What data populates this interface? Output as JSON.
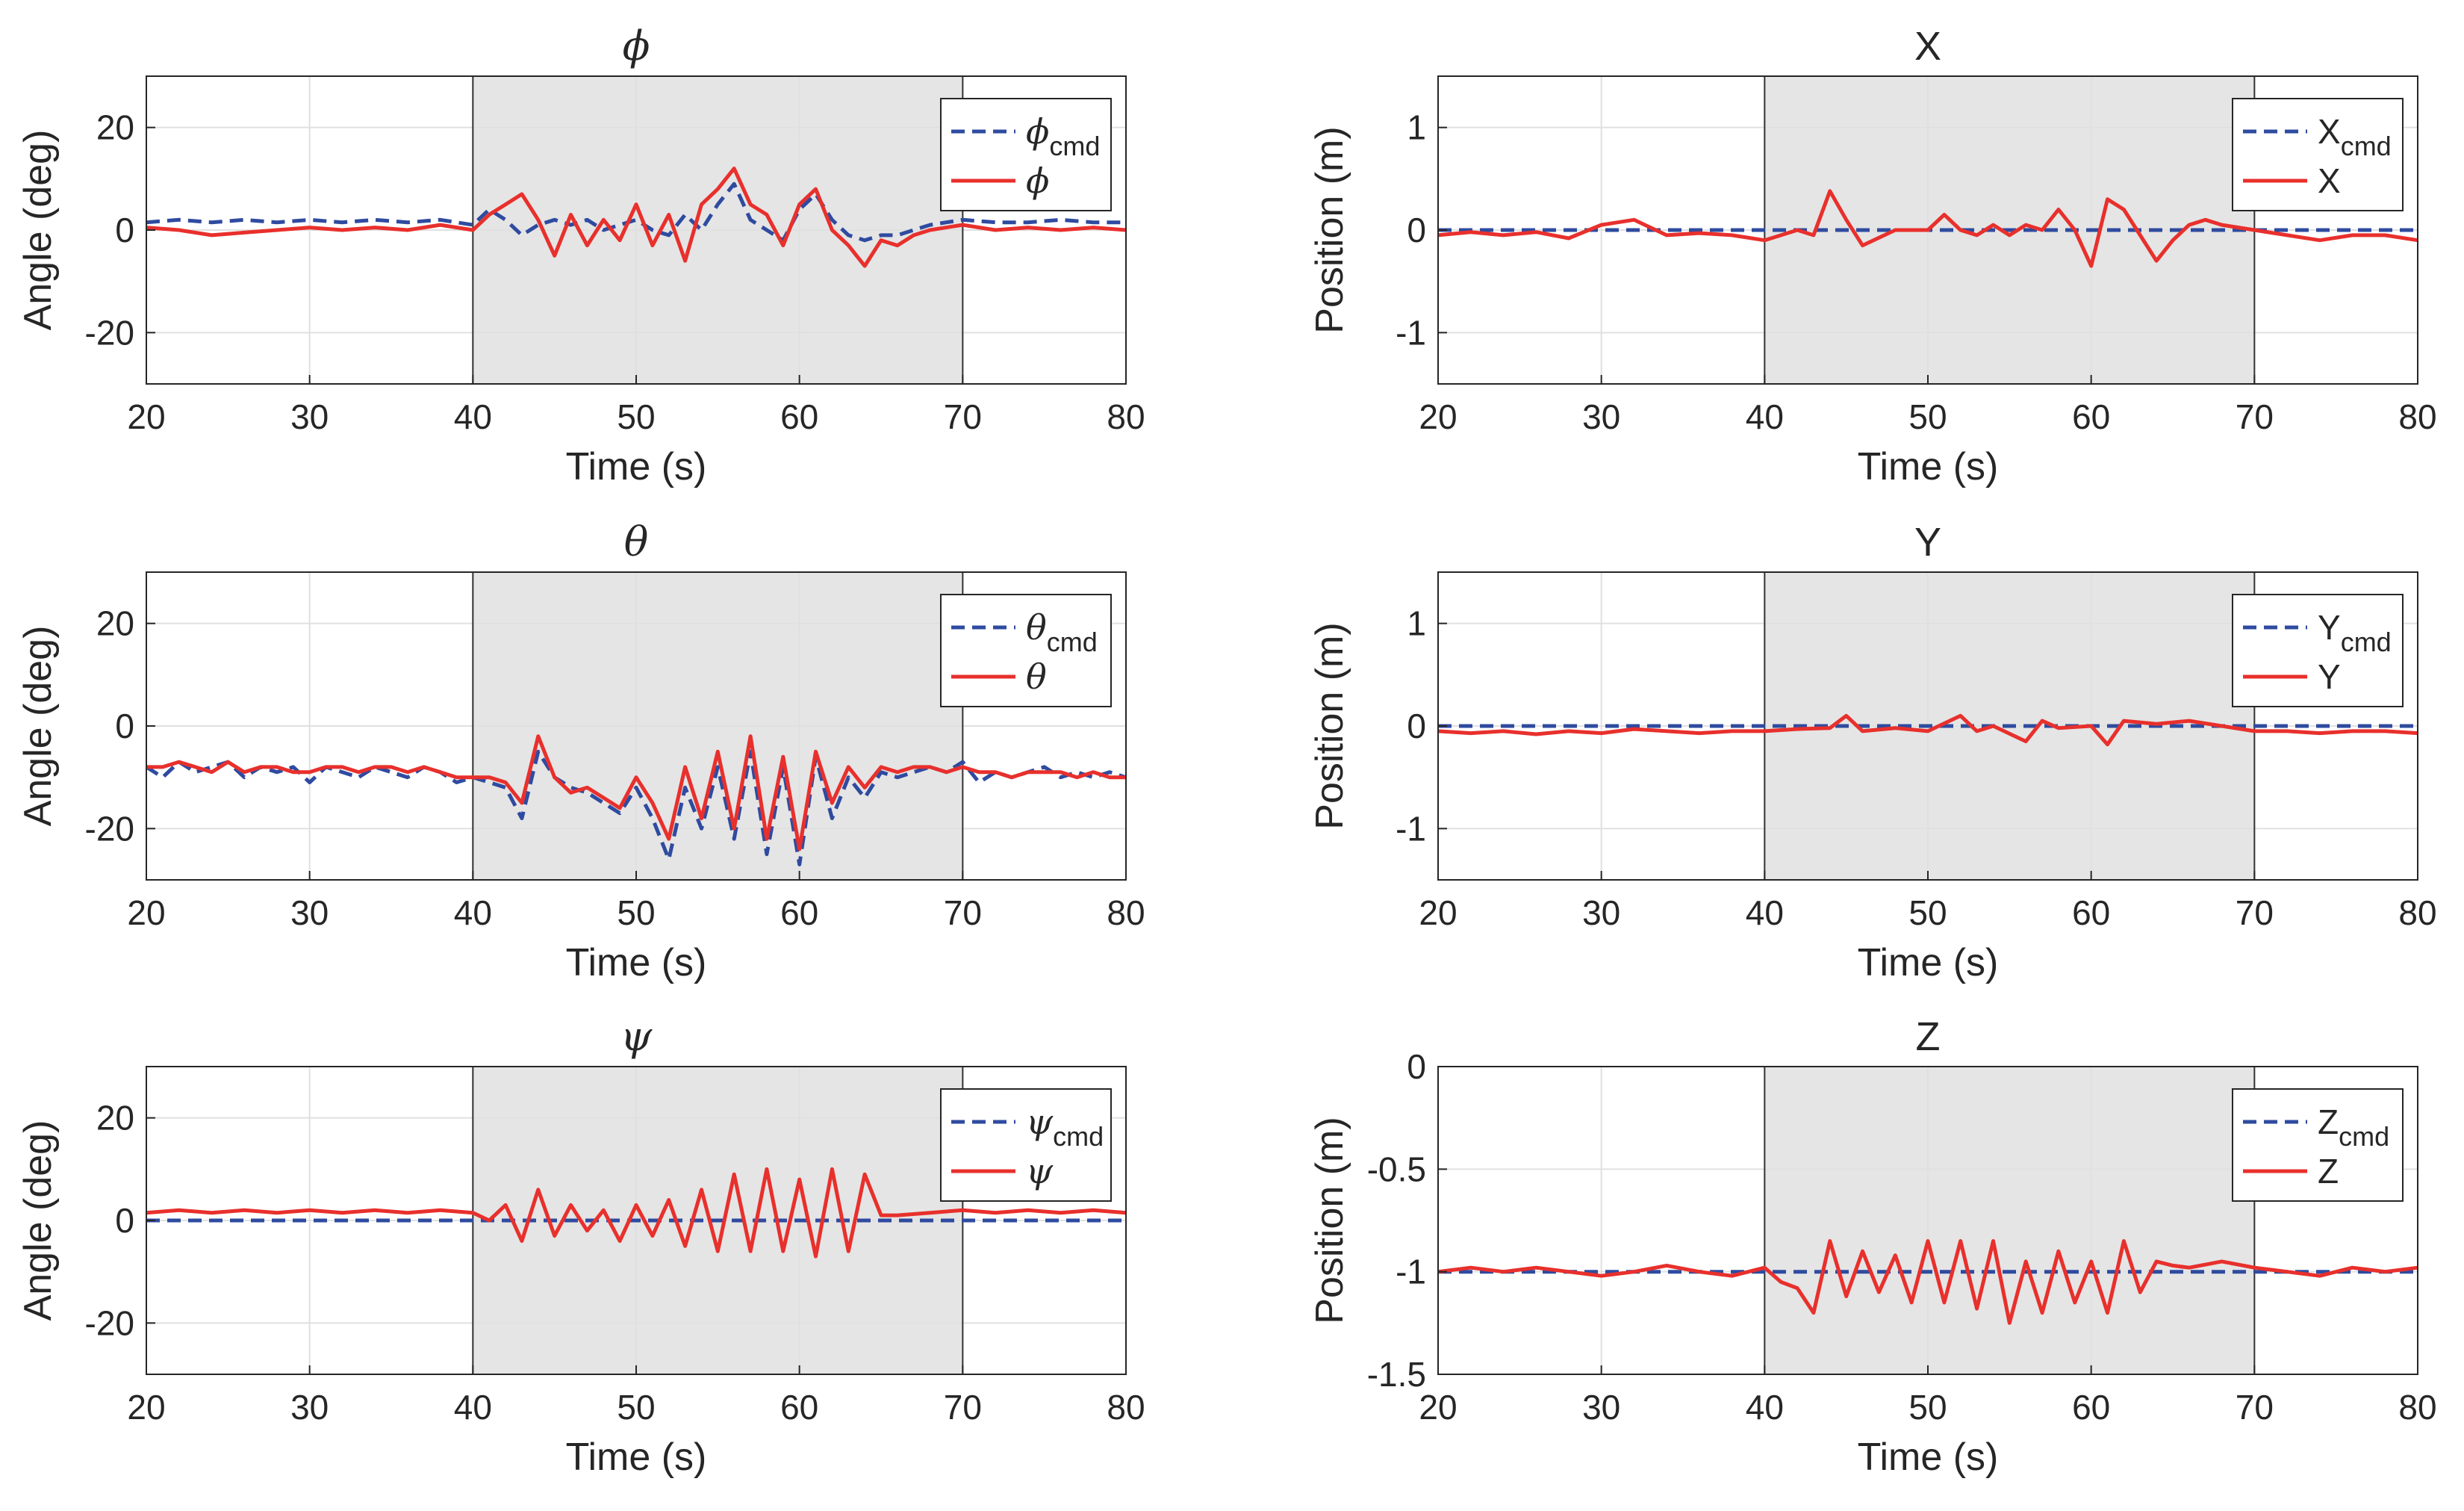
{
  "figure": {
    "background": "#ffffff"
  },
  "style": {
    "cmd_color": "#2F4BA0",
    "act_color": "#E8302C",
    "shade_color": "#E5E5E5",
    "grid_color": "#E0E0E0",
    "axis_color": "#262626"
  },
  "chart_data": [
    {
      "id": "phi",
      "type": "line",
      "title": "ϕ",
      "title_style": "greek",
      "xlabel": "Time (s)",
      "ylabel": "Angle (deg)",
      "xlim": [
        20,
        80
      ],
      "ylim": [
        -30,
        30
      ],
      "xticks": [
        20,
        30,
        40,
        50,
        60,
        70,
        80
      ],
      "yticks": [
        -20,
        0,
        20
      ],
      "shaded_interval": [
        40,
        70
      ],
      "legend_loc": "top-right",
      "series": [
        {
          "name": "cmd",
          "legend_base": "ϕ",
          "legend_sub": "cmd",
          "style": "dashed",
          "x": [
            20,
            22,
            24,
            26,
            28,
            30,
            32,
            34,
            36,
            38,
            40,
            41,
            42,
            43,
            44,
            45,
            46,
            47,
            48,
            49,
            50,
            51,
            52,
            53,
            54,
            55,
            56,
            57,
            58,
            59,
            60,
            61,
            62,
            63,
            64,
            65,
            66,
            67,
            68,
            70,
            72,
            74,
            76,
            78,
            80
          ],
          "values": [
            1.5,
            2,
            1.5,
            2,
            1.5,
            2,
            1.5,
            2,
            1.5,
            2,
            1,
            4,
            2,
            -1,
            1,
            2,
            1,
            2,
            0,
            1,
            2,
            0,
            -1,
            3,
            0,
            5,
            9,
            2,
            0,
            -2,
            4,
            7,
            2,
            -1,
            -2,
            -1,
            -1,
            0,
            1,
            2,
            1.5,
            1.5,
            2,
            1.5,
            1.5
          ]
        },
        {
          "name": "actual",
          "legend_base": "ϕ",
          "legend_sub": "",
          "style": "solid",
          "x": [
            20,
            22,
            24,
            26,
            28,
            30,
            32,
            34,
            36,
            38,
            40,
            41,
            42,
            43,
            44,
            45,
            46,
            47,
            48,
            49,
            50,
            51,
            52,
            53,
            54,
            55,
            56,
            57,
            58,
            59,
            60,
            61,
            62,
            63,
            64,
            65,
            66,
            67,
            68,
            70,
            72,
            74,
            76,
            78,
            80
          ],
          "values": [
            0.5,
            0,
            -1,
            -0.5,
            0,
            0.5,
            0,
            0.5,
            0,
            1,
            0,
            3,
            5,
            7,
            2,
            -5,
            3,
            -3,
            2,
            -2,
            5,
            -3,
            3,
            -6,
            5,
            8,
            12,
            5,
            3,
            -3,
            5,
            8,
            0,
            -3,
            -7,
            -2,
            -3,
            -1,
            0,
            1,
            0,
            0.5,
            0,
            0.5,
            0
          ]
        }
      ]
    },
    {
      "id": "theta",
      "type": "line",
      "title": "θ",
      "title_style": "greek",
      "xlabel": "Time (s)",
      "ylabel": "Angle (deg)",
      "xlim": [
        20,
        80
      ],
      "ylim": [
        -30,
        30
      ],
      "xticks": [
        20,
        30,
        40,
        50,
        60,
        70,
        80
      ],
      "yticks": [
        -20,
        0,
        20
      ],
      "shaded_interval": [
        40,
        70
      ],
      "legend_loc": "top-right",
      "series": [
        {
          "name": "cmd",
          "legend_base": "θ",
          "legend_sub": "cmd",
          "style": "dashed",
          "x": [
            20,
            21,
            22,
            23,
            24,
            25,
            26,
            27,
            28,
            29,
            30,
            31,
            32,
            33,
            34,
            35,
            36,
            37,
            38,
            39,
            40,
            41,
            42,
            43,
            44,
            45,
            46,
            47,
            48,
            49,
            50,
            51,
            52,
            53,
            54,
            55,
            56,
            57,
            58,
            59,
            60,
            61,
            62,
            63,
            64,
            65,
            66,
            67,
            68,
            69,
            70,
            71,
            72,
            73,
            74,
            75,
            76,
            77,
            78,
            79,
            80
          ],
          "values": [
            -8,
            -10,
            -7,
            -9,
            -8,
            -7,
            -10,
            -8,
            -9,
            -8,
            -11,
            -8,
            -9,
            -10,
            -8,
            -9,
            -10,
            -8,
            -9,
            -11,
            -10,
            -11,
            -12,
            -18,
            -5,
            -10,
            -12,
            -13,
            -15,
            -17,
            -12,
            -18,
            -26,
            -12,
            -20,
            -8,
            -22,
            -5,
            -25,
            -8,
            -27,
            -6,
            -18,
            -10,
            -14,
            -9,
            -10,
            -9,
            -8,
            -9,
            -7,
            -11,
            -9,
            -10,
            -9,
            -8,
            -10,
            -9,
            -10,
            -9,
            -10
          ]
        },
        {
          "name": "actual",
          "legend_base": "θ",
          "legend_sub": "",
          "style": "solid",
          "x": [
            20,
            21,
            22,
            23,
            24,
            25,
            26,
            27,
            28,
            29,
            30,
            31,
            32,
            33,
            34,
            35,
            36,
            37,
            38,
            39,
            40,
            41,
            42,
            43,
            44,
            45,
            46,
            47,
            48,
            49,
            50,
            51,
            52,
            53,
            54,
            55,
            56,
            57,
            58,
            59,
            60,
            61,
            62,
            63,
            64,
            65,
            66,
            67,
            68,
            69,
            70,
            71,
            72,
            73,
            74,
            75,
            76,
            77,
            78,
            79,
            80
          ],
          "values": [
            -8,
            -8,
            -7,
            -8,
            -9,
            -7,
            -9,
            -8,
            -8,
            -9,
            -9,
            -8,
            -8,
            -9,
            -8,
            -8,
            -9,
            -8,
            -9,
            -10,
            -10,
            -10,
            -11,
            -15,
            -2,
            -10,
            -13,
            -12,
            -14,
            -16,
            -10,
            -15,
            -22,
            -8,
            -18,
            -5,
            -20,
            -2,
            -22,
            -6,
            -24,
            -5,
            -15,
            -8,
            -12,
            -8,
            -9,
            -8,
            -8,
            -9,
            -8,
            -9,
            -9,
            -10,
            -9,
            -9,
            -9,
            -10,
            -9,
            -10,
            -10
          ]
        }
      ]
    },
    {
      "id": "psi",
      "type": "line",
      "title": "ψ",
      "title_style": "greek",
      "xlabel": "Time (s)",
      "ylabel": "Angle (deg)",
      "xlim": [
        20,
        80
      ],
      "ylim": [
        -30,
        30
      ],
      "xticks": [
        20,
        30,
        40,
        50,
        60,
        70,
        80
      ],
      "yticks": [
        -20,
        0,
        20
      ],
      "shaded_interval": [
        40,
        70
      ],
      "legend_loc": "top-right",
      "series": [
        {
          "name": "cmd",
          "legend_base": "ψ",
          "legend_sub": "cmd",
          "style": "dashed",
          "x": [
            20,
            80
          ],
          "values": [
            0,
            0
          ]
        },
        {
          "name": "actual",
          "legend_base": "ψ",
          "legend_sub": "",
          "style": "solid",
          "x": [
            20,
            22,
            24,
            26,
            28,
            30,
            32,
            34,
            36,
            38,
            40,
            41,
            42,
            43,
            44,
            45,
            46,
            47,
            48,
            49,
            50,
            51,
            52,
            53,
            54,
            55,
            56,
            57,
            58,
            59,
            60,
            61,
            62,
            63,
            64,
            65,
            66,
            68,
            70,
            72,
            74,
            76,
            78,
            80
          ],
          "values": [
            1.5,
            2,
            1.5,
            2,
            1.5,
            2,
            1.5,
            2,
            1.5,
            2,
            1.5,
            0,
            3,
            -4,
            6,
            -3,
            3,
            -2,
            2,
            -4,
            3,
            -3,
            4,
            -5,
            6,
            -6,
            9,
            -6,
            10,
            -6,
            8,
            -7,
            10,
            -6,
            9,
            1,
            1,
            1.5,
            2,
            1.5,
            2,
            1.5,
            2,
            1.5
          ]
        }
      ]
    },
    {
      "id": "X",
      "type": "line",
      "title": "X",
      "title_style": "latin",
      "xlabel": "Time (s)",
      "ylabel": "Position (m)",
      "xlim": [
        20,
        80
      ],
      "ylim": [
        -1.5,
        1.5
      ],
      "xticks": [
        20,
        30,
        40,
        50,
        60,
        70,
        80
      ],
      "yticks": [
        -1,
        0,
        1
      ],
      "shaded_interval": [
        40,
        70
      ],
      "legend_loc": "top-right",
      "series": [
        {
          "name": "cmd",
          "legend_base": "X",
          "legend_sub": "cmd",
          "style": "dashed",
          "x": [
            20,
            80
          ],
          "values": [
            0,
            0
          ]
        },
        {
          "name": "actual",
          "legend_base": "X",
          "legend_sub": "",
          "style": "solid",
          "x": [
            20,
            22,
            24,
            26,
            28,
            30,
            32,
            34,
            36,
            38,
            40,
            42,
            43,
            44,
            45,
            46,
            48,
            50,
            51,
            52,
            53,
            54,
            55,
            56,
            57,
            58,
            59,
            60,
            61,
            62,
            63,
            64,
            65,
            66,
            67,
            68,
            70,
            72,
            74,
            76,
            78,
            80
          ],
          "values": [
            -0.05,
            -0.02,
            -0.05,
            -0.02,
            -0.08,
            0.05,
            0.1,
            -0.05,
            -0.03,
            -0.05,
            -0.1,
            0,
            -0.05,
            0.38,
            0.1,
            -0.15,
            0,
            0,
            0.15,
            0,
            -0.05,
            0.05,
            -0.05,
            0.05,
            0,
            0.2,
            0,
            -0.35,
            0.3,
            0.2,
            -0.05,
            -0.3,
            -0.1,
            0.05,
            0.1,
            0.05,
            0,
            -0.05,
            -0.1,
            -0.05,
            -0.05,
            -0.1
          ]
        }
      ]
    },
    {
      "id": "Y",
      "type": "line",
      "title": "Y",
      "title_style": "latin",
      "xlabel": "Time (s)",
      "ylabel": "Position (m)",
      "xlim": [
        20,
        80
      ],
      "ylim": [
        -1.5,
        1.5
      ],
      "xticks": [
        20,
        30,
        40,
        50,
        60,
        70,
        80
      ],
      "yticks": [
        -1,
        0,
        1
      ],
      "shaded_interval": [
        40,
        70
      ],
      "legend_loc": "top-right",
      "series": [
        {
          "name": "cmd",
          "legend_base": "Y",
          "legend_sub": "cmd",
          "style": "dashed",
          "x": [
            20,
            80
          ],
          "values": [
            0,
            0
          ]
        },
        {
          "name": "actual",
          "legend_base": "Y",
          "legend_sub": "",
          "style": "solid",
          "x": [
            20,
            22,
            24,
            26,
            28,
            30,
            32,
            34,
            36,
            38,
            40,
            42,
            44,
            45,
            46,
            48,
            50,
            52,
            53,
            54,
            56,
            57,
            58,
            60,
            61,
            62,
            64,
            66,
            68,
            70,
            72,
            74,
            76,
            78,
            80
          ],
          "values": [
            -0.05,
            -0.07,
            -0.05,
            -0.08,
            -0.05,
            -0.07,
            -0.03,
            -0.05,
            -0.07,
            -0.05,
            -0.05,
            -0.03,
            -0.02,
            0.1,
            -0.05,
            -0.02,
            -0.05,
            0.1,
            -0.05,
            0,
            -0.15,
            0.05,
            -0.02,
            0,
            -0.18,
            0.05,
            0.02,
            0.05,
            0,
            -0.05,
            -0.05,
            -0.07,
            -0.05,
            -0.05,
            -0.07
          ]
        }
      ]
    },
    {
      "id": "Z",
      "type": "line",
      "title": "Z",
      "title_style": "latin",
      "xlabel": "Time (s)",
      "ylabel": "Position (m)",
      "xlim": [
        20,
        80
      ],
      "ylim": [
        -1.5,
        0
      ],
      "xticks": [
        20,
        30,
        40,
        50,
        60,
        70,
        80
      ],
      "yticks": [
        -1.5,
        -1,
        -0.5,
        0
      ],
      "shaded_interval": [
        40,
        70
      ],
      "legend_loc": "top-right",
      "series": [
        {
          "name": "cmd",
          "legend_base": "Z",
          "legend_sub": "cmd",
          "style": "dashed",
          "x": [
            20,
            80
          ],
          "values": [
            -1,
            -1
          ]
        },
        {
          "name": "actual",
          "legend_base": "Z",
          "legend_sub": "",
          "style": "solid",
          "x": [
            20,
            22,
            24,
            26,
            28,
            30,
            32,
            34,
            36,
            38,
            40,
            41,
            42,
            43,
            44,
            45,
            46,
            47,
            48,
            49,
            50,
            51,
            52,
            53,
            54,
            55,
            56,
            57,
            58,
            59,
            60,
            61,
            62,
            63,
            64,
            65,
            66,
            68,
            70,
            72,
            74,
            76,
            78,
            80
          ],
          "values": [
            -1,
            -0.98,
            -1,
            -0.98,
            -1,
            -1.02,
            -1,
            -0.97,
            -1,
            -1.02,
            -0.98,
            -1.05,
            -1.08,
            -1.2,
            -0.85,
            -1.12,
            -0.9,
            -1.1,
            -0.92,
            -1.15,
            -0.85,
            -1.15,
            -0.85,
            -1.18,
            -0.85,
            -1.25,
            -0.95,
            -1.2,
            -0.9,
            -1.15,
            -0.95,
            -1.2,
            -0.85,
            -1.1,
            -0.95,
            -0.97,
            -0.98,
            -0.95,
            -0.98,
            -1,
            -1.02,
            -0.98,
            -1,
            -0.98
          ]
        }
      ]
    }
  ]
}
